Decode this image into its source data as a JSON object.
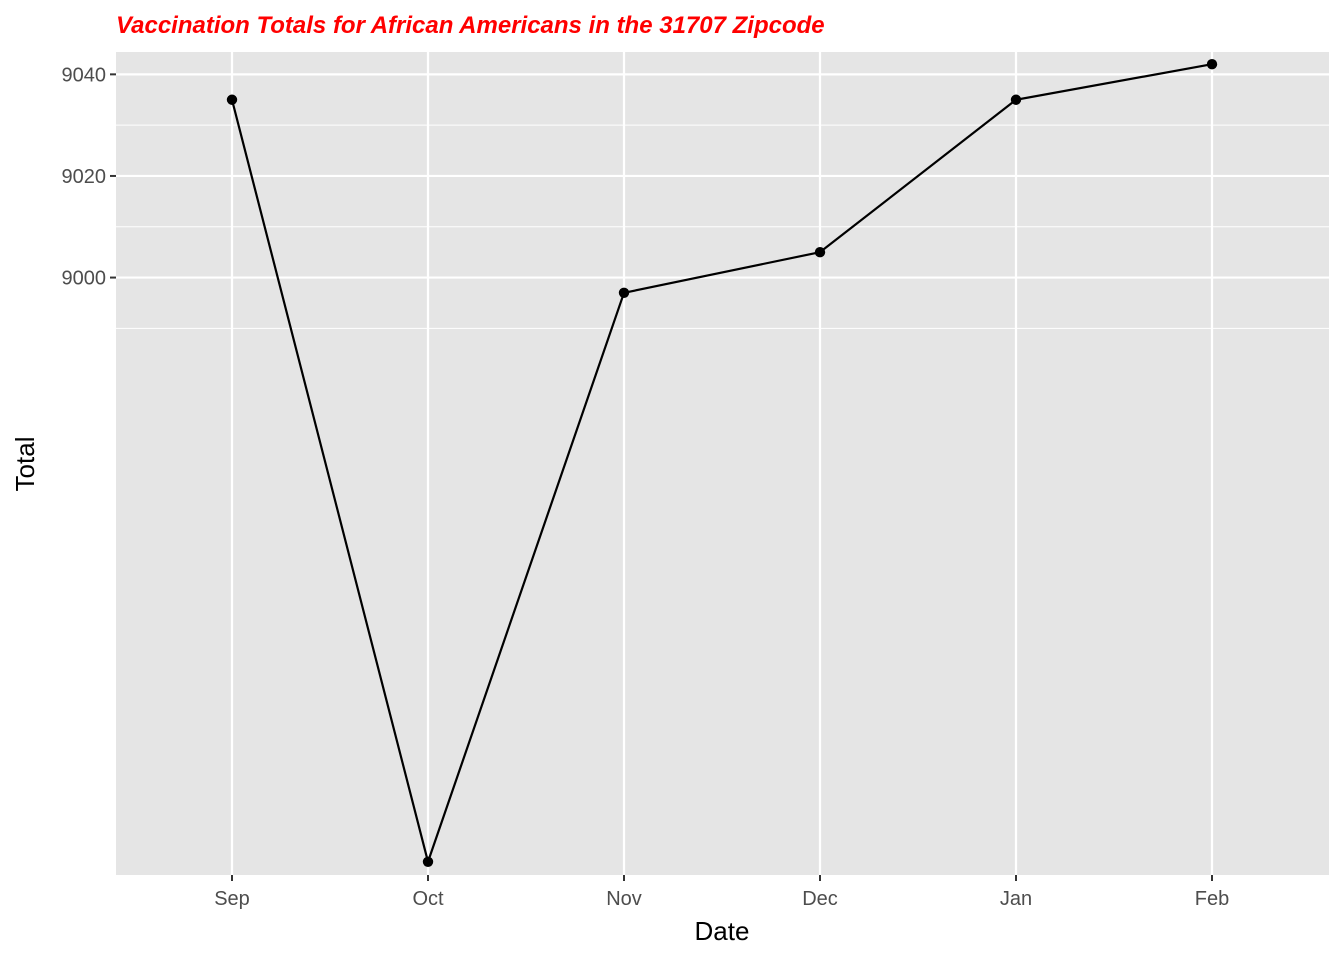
{
  "chart_data": {
    "type": "line",
    "title": "Vaccination Totals for African Americans in the 31707 Zipcode",
    "xlabel": "Date",
    "ylabel": "Total",
    "categories": [
      "Sep",
      "Oct",
      "Nov",
      "Dec",
      "Jan",
      "Feb"
    ],
    "series": [
      {
        "values": [
          9035,
          8885,
          8997,
          9005,
          9035,
          9042
        ]
      }
    ],
    "y_ticks": [
      9000,
      9020,
      9040
    ],
    "y_minor_ticks": [
      8990,
      9010,
      9030
    ],
    "ylim": [
      8882.4,
      9044.4
    ],
    "grid": true,
    "legend": "none"
  },
  "colors": {
    "title": "#ff0000",
    "panel_background": "#e5e5e5",
    "grid": "#ffffff",
    "line": "#000000",
    "point": "#000000",
    "tick_label": "#4d4d4d",
    "axis_title": "#000000"
  }
}
